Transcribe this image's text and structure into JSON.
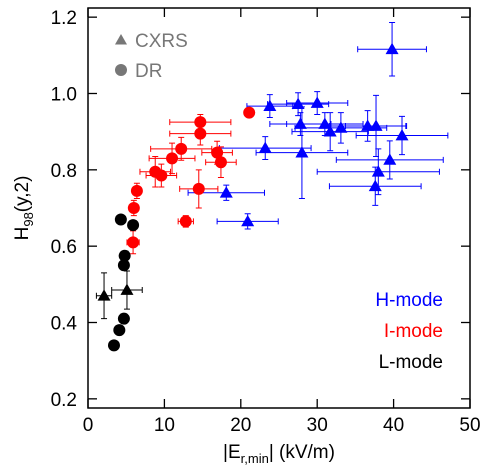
{
  "chart_data": {
    "type": "scatter",
    "xlabel": {
      "pre": "|E",
      "sub": "r,min",
      "post": "| (kV/m)"
    },
    "ylabel": {
      "pre": "H",
      "sub": "98",
      "post": "(y,2)"
    },
    "xlim": [
      0,
      50
    ],
    "ylim": [
      0.176,
      1.224
    ],
    "xticks": [
      0,
      10,
      20,
      30,
      40,
      50
    ],
    "yticks": [
      0.2,
      0.4,
      0.6,
      0.8,
      1.0,
      1.2
    ],
    "marker_legend": [
      {
        "label": "CXRS",
        "marker": "triangle"
      },
      {
        "label": "DR",
        "marker": "circle"
      }
    ],
    "series": [
      {
        "name": "H-mode",
        "color": "#0000ff",
        "marker": "triangle",
        "x": [
          39.8,
          23.8,
          27.5,
          30,
          27.8,
          31,
          33.1,
          36.6,
          37.7,
          41.1,
          31.7,
          23.2,
          28,
          39.5,
          38,
          37.6,
          18.1,
          20.9
        ],
        "values": [
          1.116,
          0.967,
          0.972,
          0.975,
          0.92,
          0.92,
          0.91,
          0.915,
          0.915,
          0.89,
          0.9,
          0.857,
          0.845,
          0.826,
          0.795,
          0.757,
          0.74,
          0.665
        ],
        "xerr": [
          4.5,
          3,
          4,
          4,
          4,
          5,
          6,
          5,
          4,
          6,
          5,
          6,
          6,
          7,
          8,
          6,
          5,
          4
        ],
        "yerr": [
          0.07,
          0.03,
          0.03,
          0.03,
          0.03,
          0.03,
          0.04,
          0.04,
          0.08,
          0.05,
          0.05,
          0.03,
          0.12,
          0.05,
          0.06,
          0.05,
          0.02,
          0.02
        ]
      },
      {
        "name": "I-mode",
        "color": "#ff0000",
        "marker": "circle",
        "x": [
          6.4,
          6.0,
          5.9,
          8.8,
          9.6,
          11,
          12.2,
          12.8,
          14.5,
          14.7,
          14.7,
          16.9,
          17.4,
          21.1
        ],
        "values": [
          0.745,
          0.7,
          0.61,
          0.795,
          0.785,
          0.83,
          0.855,
          0.665,
          0.75,
          0.895,
          0.925,
          0.845,
          0.82,
          0.95
        ],
        "xerr": [
          0.5,
          0.5,
          0.8,
          2,
          2,
          3,
          4,
          1,
          2.5,
          4,
          4,
          2,
          2,
          0.5
        ],
        "yerr": [
          0.02,
          0.02,
          0.03,
          0.04,
          0.03,
          0.04,
          0.03,
          0.015,
          0.05,
          0.03,
          0.02,
          0.03,
          0.04,
          0.01
        ]
      },
      {
        "name": "L-mode",
        "color": "#000000",
        "marker": "circle",
        "x": [
          4.3,
          5.9,
          4.8,
          4.7,
          4.7,
          4.1,
          3.4
        ],
        "values": [
          0.67,
          0.655,
          0.575,
          0.55,
          0.41,
          0.38,
          0.34
        ]
      },
      {
        "name": "L-mode",
        "color": "#000000",
        "marker": "triangle",
        "x": [
          2.1,
          5.1
        ],
        "values": [
          0.47,
          0.485
        ],
        "xerr": [
          1,
          2
        ],
        "yerr": [
          0.06,
          0.05
        ]
      }
    ]
  }
}
